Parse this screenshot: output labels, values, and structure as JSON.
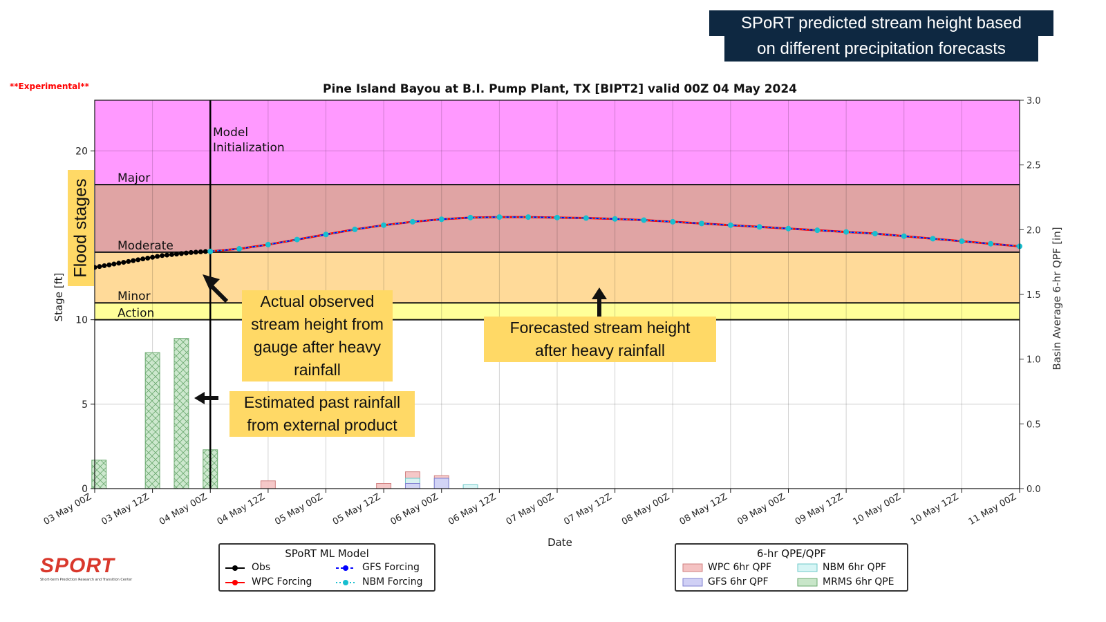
{
  "header": {
    "banner_line1": "SPoRT predicted stream height based",
    "banner_line2": "on different precipitation forecasts",
    "experimental": "**Experimental**"
  },
  "annotations": {
    "flood_stages": "Flood stages",
    "observed_1": "Actual observed",
    "observed_2": "stream height from",
    "observed_3": "gauge after heavy",
    "observed_4": "rainfall",
    "forecast_1": "Forecasted stream height",
    "forecast_2": "after heavy rainfall",
    "rainfall_1": "Estimated past rainfall",
    "rainfall_2": "from external product"
  },
  "legend_model": {
    "title": "SPoRT ML Model",
    "obs": "Obs",
    "wpc": "WPC Forcing",
    "gfs": "GFS Forcing",
    "nbm": "NBM Forcing"
  },
  "legend_qpf": {
    "title": "6-hr QPE/QPF",
    "wpc": "WPC 6hr QPF",
    "gfs": "GFS 6hr QPF",
    "nbm": "NBM 6hr QPF",
    "mrms": "MRMS 6hr QPE"
  },
  "logo": {
    "wordmark": "SPORT",
    "subtitle": "Short-term Prediction Research and Transition Center"
  },
  "chart_data": {
    "type": "line",
    "title": "Pine Island Bayou at B.I. Pump Plant, TX [BIPT2] valid  00Z 04 May 2024",
    "xlabel": "Date",
    "ylabel": "Stage [ft]",
    "y2label": "Basin Average 6-hr QPF [in]",
    "xlim_hours": [
      0,
      192
    ],
    "ylim": [
      0,
      23
    ],
    "y2lim": [
      0,
      3.0
    ],
    "x_ticks": [
      {
        "h": 0,
        "label": "03 May 00Z"
      },
      {
        "h": 12,
        "label": "03 May 12Z"
      },
      {
        "h": 24,
        "label": "04 May 00Z"
      },
      {
        "h": 36,
        "label": "04 May 12Z"
      },
      {
        "h": 48,
        "label": "05 May 00Z"
      },
      {
        "h": 60,
        "label": "05 May 12Z"
      },
      {
        "h": 72,
        "label": "06 May 00Z"
      },
      {
        "h": 84,
        "label": "06 May 12Z"
      },
      {
        "h": 96,
        "label": "07 May 00Z"
      },
      {
        "h": 108,
        "label": "07 May 12Z"
      },
      {
        "h": 120,
        "label": "08 May 00Z"
      },
      {
        "h": 132,
        "label": "08 May 12Z"
      },
      {
        "h": 144,
        "label": "09 May 00Z"
      },
      {
        "h": 156,
        "label": "09 May 12Z"
      },
      {
        "h": 168,
        "label": "10 May 00Z"
      },
      {
        "h": 180,
        "label": "10 May 12Z"
      },
      {
        "h": 192,
        "label": "11 May 00Z"
      }
    ],
    "y_ticks": [
      0,
      5,
      10,
      20
    ],
    "y2_ticks": [
      "0.0",
      "0.5",
      "1.0",
      "1.5",
      "2.0",
      "2.5",
      "3.0"
    ],
    "flood_stages": [
      {
        "name": "Action",
        "from": 10,
        "to": 11,
        "color": "#ffff99"
      },
      {
        "name": "Minor",
        "from": 11,
        "to": 14,
        "color": "#ffda99"
      },
      {
        "name": "Moderate",
        "from": 14,
        "to": 18,
        "color": "#e0a4a4"
      },
      {
        "name": "Major",
        "from": 18,
        "to": 23,
        "color": "#ff99ff"
      }
    ],
    "init_line": {
      "h": 24,
      "label_1": "Model",
      "label_2": "Initialization"
    },
    "series": [
      {
        "name": "Obs",
        "color": "#000000",
        "x": [
          0,
          1,
          2,
          3,
          4,
          5,
          6,
          7,
          8,
          9,
          10,
          11,
          12,
          13,
          14,
          15,
          16,
          17,
          18,
          19,
          20,
          21,
          22,
          23,
          24
        ],
        "y": [
          13.1,
          13.15,
          13.2,
          13.25,
          13.3,
          13.35,
          13.4,
          13.45,
          13.5,
          13.55,
          13.6,
          13.65,
          13.7,
          13.75,
          13.8,
          13.83,
          13.86,
          13.89,
          13.92,
          13.95,
          13.98,
          14.0,
          14.02,
          14.04,
          14.05
        ]
      },
      {
        "name": "WPC Forcing",
        "color": "#ff0000",
        "x": [
          24,
          30,
          36,
          42,
          48,
          54,
          60,
          66,
          72,
          78,
          84,
          90,
          96,
          102,
          108,
          114,
          120,
          126,
          132,
          138,
          144,
          150,
          156,
          162,
          168,
          174,
          180,
          186,
          192
        ],
        "y": [
          14.05,
          14.2,
          14.45,
          14.75,
          15.05,
          15.35,
          15.6,
          15.8,
          15.95,
          16.05,
          16.08,
          16.08,
          16.05,
          16.02,
          15.97,
          15.9,
          15.8,
          15.7,
          15.6,
          15.5,
          15.4,
          15.3,
          15.2,
          15.1,
          14.95,
          14.8,
          14.65,
          14.5,
          14.35
        ]
      },
      {
        "name": "GFS Forcing",
        "color": "#0000ff",
        "x": [
          24,
          30,
          36,
          42,
          48,
          54,
          60,
          66,
          72,
          78,
          84,
          90,
          96,
          102,
          108,
          114,
          120,
          126,
          132,
          138,
          144,
          150,
          156,
          162,
          168,
          174,
          180,
          186,
          192
        ],
        "y": [
          14.05,
          14.2,
          14.45,
          14.75,
          15.05,
          15.35,
          15.6,
          15.8,
          15.95,
          16.05,
          16.08,
          16.08,
          16.05,
          16.02,
          15.97,
          15.9,
          15.8,
          15.7,
          15.6,
          15.5,
          15.4,
          15.3,
          15.2,
          15.1,
          14.95,
          14.8,
          14.65,
          14.5,
          14.35
        ]
      },
      {
        "name": "NBM Forcing",
        "color": "#17becf",
        "x": [
          24,
          30,
          36,
          42,
          48,
          54,
          60,
          66,
          72,
          78,
          84,
          90,
          96,
          102,
          108,
          114,
          120,
          126,
          132,
          138,
          144,
          150,
          156,
          162,
          168,
          174,
          180,
          186,
          192
        ],
        "y": [
          14.05,
          14.2,
          14.45,
          14.75,
          15.05,
          15.35,
          15.6,
          15.8,
          15.95,
          16.05,
          16.08,
          16.08,
          16.05,
          16.02,
          15.97,
          15.9,
          15.8,
          15.7,
          15.6,
          15.5,
          15.4,
          15.3,
          15.2,
          15.1,
          14.95,
          14.8,
          14.65,
          14.5,
          14.35
        ]
      }
    ],
    "bars": [
      {
        "name": "MRMS 6hr QPE",
        "color": "#c8e6c9",
        "stroke": "#6aa86e",
        "x": [
          0,
          12,
          18,
          24
        ],
        "y": [
          0.22,
          1.05,
          1.16,
          0.3
        ]
      },
      {
        "name": "WPC 6hr QPF",
        "color": "#f4c2c2",
        "stroke": "#d08080",
        "x": [
          36,
          60,
          66,
          72
        ],
        "y": [
          0.06,
          0.04,
          0.13,
          0.1
        ]
      },
      {
        "name": "NBM 6hr QPF",
        "color": "#d6f5f5",
        "stroke": "#6cc8c8",
        "x": [
          66,
          72,
          78
        ],
        "y": [
          0.08,
          0.08,
          0.03
        ]
      },
      {
        "name": "GFS 6hr QPF",
        "color": "#d0d0f5",
        "stroke": "#8080d0",
        "x": [
          66,
          72
        ],
        "y": [
          0.04,
          0.08
        ]
      }
    ]
  }
}
